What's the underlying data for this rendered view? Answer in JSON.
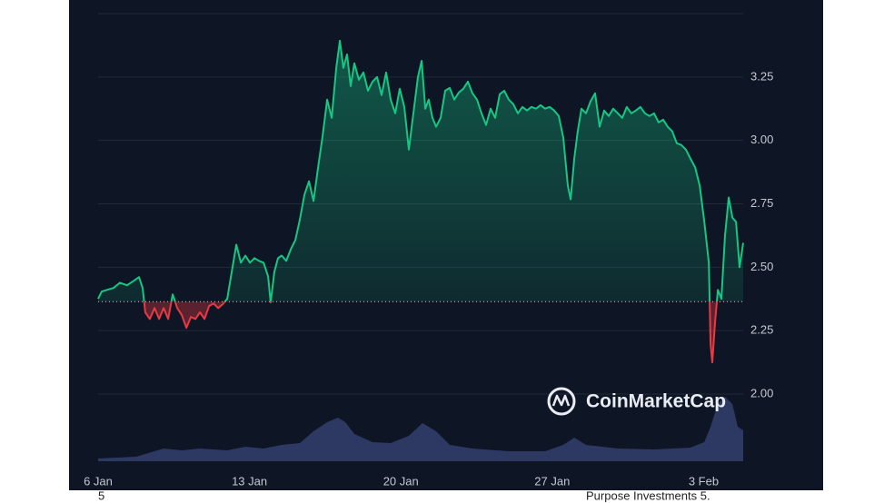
{
  "chart_data": {
    "type": "line",
    "x": [
      0,
      0.17,
      0.42,
      0.71,
      1.01,
      1.34,
      1.64,
      1.89,
      2.06,
      2.18,
      2.39,
      2.61,
      2.82,
      3.03,
      3.24,
      3.45,
      3.66,
      3.87,
      4.08,
      4.29,
      4.5,
      4.71,
      4.92,
      5.13,
      5.34,
      5.55,
      5.76,
      5.97,
      6.18,
      6.39,
      6.6,
      6.81,
      7.02,
      7.23,
      7.44,
      7.65,
      7.86,
      7.98,
      8.15,
      8.32,
      8.49,
      8.7,
      8.91,
      9.12,
      9.33,
      9.54,
      9.75,
      9.96,
      10.17,
      10.38,
      10.59,
      10.8,
      11.01,
      11.18,
      11.34,
      11.51,
      11.68,
      11.85,
      12.06,
      12.27,
      12.48,
      12.69,
      12.9,
      13.11,
      13.32,
      13.53,
      13.74,
      13.95,
      14.16,
      14.37,
      14.58,
      14.79,
      14.96,
      15.13,
      15.29,
      15.46,
      15.63,
      15.84,
      16.05,
      16.26,
      16.47,
      16.68,
      16.89,
      17.1,
      17.31,
      17.52,
      17.73,
      17.94,
      18.15,
      18.36,
      18.57,
      18.78,
      18.99,
      19.2,
      19.41,
      19.62,
      19.83,
      20.04,
      20.25,
      20.46,
      20.67,
      20.88,
      21.09,
      21.3,
      21.51,
      21.72,
      21.85,
      22.02,
      22.18,
      22.35,
      22.56,
      22.77,
      22.98,
      23.19,
      23.4,
      23.61,
      23.82,
      24.03,
      24.24,
      24.45,
      24.66,
      24.87,
      25.08,
      25.29,
      25.5,
      25.71,
      25.92,
      26.13,
      26.34,
      26.55,
      26.76,
      26.97,
      27.18,
      27.39,
      27.61,
      27.82,
      28.03,
      28.24,
      28.32,
      28.4,
      28.53,
      28.66,
      28.82,
      28.99,
      29.16,
      29.33,
      29.5,
      29.66,
      29.83
    ],
    "series": [
      {
        "color": "#16c784",
        "below_color": "#ea3943",
        "values": [
          2.375,
          2.404,
          2.411,
          2.418,
          2.439,
          2.429,
          2.446,
          2.461,
          2.418,
          2.322,
          2.296,
          2.339,
          2.296,
          2.339,
          2.296,
          2.393,
          2.339,
          2.311,
          2.261,
          2.304,
          2.296,
          2.322,
          2.296,
          2.347,
          2.357,
          2.339,
          2.354,
          2.375,
          2.482,
          2.589,
          2.518,
          2.546,
          2.518,
          2.536,
          2.525,
          2.518,
          2.464,
          2.361,
          2.482,
          2.536,
          2.546,
          2.525,
          2.571,
          2.607,
          2.689,
          2.786,
          2.839,
          2.761,
          2.893,
          3.018,
          3.161,
          3.089,
          3.286,
          3.393,
          3.286,
          3.339,
          3.214,
          3.304,
          3.239,
          3.268,
          3.196,
          3.232,
          3.25,
          3.179,
          3.268,
          3.161,
          3.107,
          3.204,
          3.132,
          2.964,
          3.107,
          3.25,
          3.314,
          3.125,
          3.161,
          3.089,
          3.054,
          3.089,
          3.196,
          3.207,
          3.161,
          3.189,
          3.204,
          3.232,
          3.186,
          3.161,
          3.107,
          3.061,
          3.125,
          3.089,
          3.182,
          3.196,
          3.161,
          3.143,
          3.107,
          3.132,
          3.118,
          3.132,
          3.125,
          3.139,
          3.125,
          3.132,
          3.118,
          3.096,
          3.011,
          2.821,
          2.768,
          2.929,
          3.036,
          3.125,
          3.107,
          3.154,
          3.186,
          3.054,
          3.118,
          3.096,
          3.125,
          3.107,
          3.089,
          3.132,
          3.107,
          3.118,
          3.132,
          3.107,
          3.096,
          3.107,
          3.071,
          3.082,
          3.054,
          3.036,
          2.989,
          2.982,
          2.964,
          2.929,
          2.893,
          2.821,
          2.679,
          2.518,
          2.196,
          2.125,
          2.286,
          2.411,
          2.375,
          2.625,
          2.775,
          2.696,
          2.679,
          2.5,
          2.596
        ]
      }
    ],
    "baseline": 2.364,
    "xlim": [
      0,
      29.83
    ],
    "xticks": [
      {
        "value": 0,
        "label": "6 Jan"
      },
      {
        "value": 7,
        "label": "13 Jan"
      },
      {
        "value": 14,
        "label": "20 Jan"
      },
      {
        "value": 21,
        "label": "27 Jan"
      },
      {
        "value": 28,
        "label": "3 Feb"
      }
    ],
    "ylim": [
      1.735,
      3.5
    ],
    "yticks": [
      {
        "value": 2,
        "label": "2.00"
      },
      2.25,
      {
        "value": 2.5,
        "label": "2.50"
      },
      2.75,
      {
        "value": 3,
        "label": "3.00"
      },
      3.25
    ],
    "grid": true,
    "volume": {
      "color": "#343f6e",
      "x": [
        0,
        1.76,
        3.03,
        3.87,
        4.71,
        5.97,
        6.81,
        7.65,
        8.49,
        9.33,
        9.96,
        10.59,
        11.09,
        11.43,
        11.85,
        12.69,
        13.53,
        14.37,
        15,
        15.63,
        16.26,
        17.31,
        18.99,
        20.67,
        21.51,
        22.02,
        22.56,
        24.03,
        25.71,
        27.39,
        28.03,
        28.32,
        28.66,
        28.99,
        29.33,
        29.58,
        29.83
      ],
      "values": [
        3,
        5,
        14,
        12,
        14,
        12,
        16,
        14,
        18,
        20,
        33,
        43,
        48,
        43,
        30,
        21,
        20,
        28,
        42,
        33,
        18,
        14,
        11,
        11,
        18,
        26,
        18,
        14,
        13,
        15,
        21,
        38,
        63,
        71,
        63,
        38,
        34
      ],
      "y2lim": [
        0,
        493
      ]
    },
    "watermark": "CoinMarketCap",
    "footer": [
      "5",
      "Purpose Investments 5."
    ]
  }
}
